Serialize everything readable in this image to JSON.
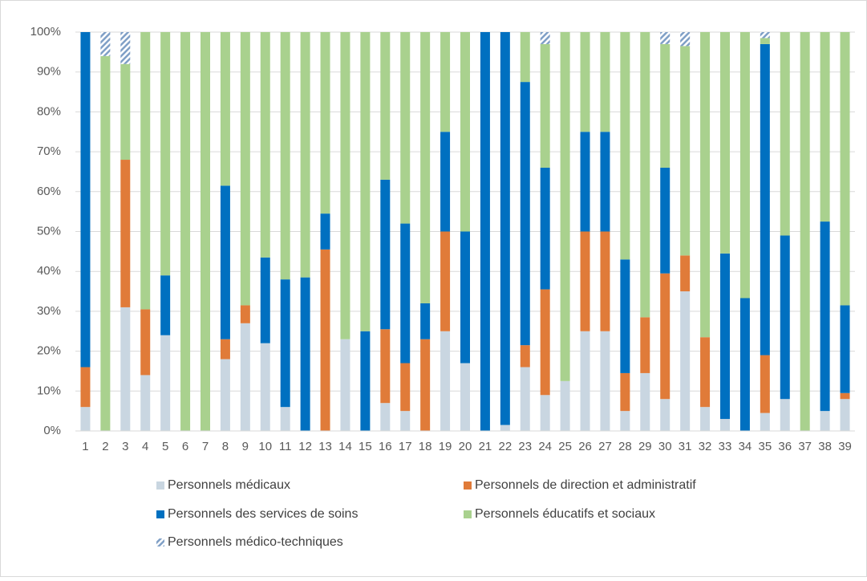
{
  "chart_data": {
    "type": "stacked_bar",
    "categories": [
      "1",
      "2",
      "3",
      "4",
      "5",
      "6",
      "7",
      "8",
      "9",
      "10",
      "11",
      "12",
      "13",
      "14",
      "15",
      "16",
      "17",
      "18",
      "19",
      "20",
      "21",
      "22",
      "23",
      "24",
      "25",
      "26",
      "27",
      "28",
      "29",
      "30",
      "31",
      "32",
      "33",
      "34",
      "35",
      "36",
      "37",
      "38",
      "39"
    ],
    "series": [
      {
        "name": "Personnels médicaux",
        "color": "#c9d6e1",
        "values": [
          6,
          0,
          31,
          14,
          24,
          0,
          0,
          18,
          27,
          22,
          6,
          0,
          0,
          23,
          0,
          7,
          5,
          0,
          25,
          17,
          0,
          1.5,
          16,
          9,
          12.5,
          25,
          25,
          5,
          14.5,
          8,
          35,
          6,
          3,
          0,
          4.5,
          8,
          0,
          5,
          8
        ]
      },
      {
        "name": "Personnels de direction et administratif",
        "color": "#e07b39",
        "values": [
          10,
          0,
          37,
          16.5,
          0,
          0,
          0,
          5,
          4.5,
          0,
          0,
          0,
          45.5,
          0,
          0,
          18.5,
          12,
          23,
          25,
          0,
          0,
          0,
          5.5,
          26.5,
          0,
          25,
          25,
          9.5,
          14,
          31.5,
          9,
          17.5,
          0,
          0,
          14.5,
          0,
          0,
          0,
          1.5
        ]
      },
      {
        "name": "Personnels des services de soins",
        "color": "#0070c0",
        "values": [
          84,
          0,
          0,
          0,
          15,
          0,
          0,
          38.5,
          0,
          21.5,
          32,
          38.5,
          9,
          0,
          25,
          37.5,
          35,
          9,
          25,
          33,
          100,
          98.5,
          66,
          30.5,
          0,
          25,
          25,
          28.5,
          0,
          26.5,
          0,
          0,
          41.5,
          33.3,
          78,
          41,
          0,
          47.5,
          22
        ]
      },
      {
        "name": "Personnels éducatifs et sociaux",
        "color": "#a9d18e",
        "values": [
          0,
          94,
          24,
          69.5,
          61,
          100,
          100,
          38.5,
          68.5,
          56.5,
          62,
          61.5,
          45.5,
          77,
          75,
          37,
          48,
          68,
          25,
          50,
          0,
          0,
          12.5,
          31,
          87.5,
          25,
          25,
          57,
          71.5,
          31,
          52.5,
          76.5,
          55.5,
          66.7,
          1.5,
          51,
          100,
          47.5,
          68.5
        ]
      },
      {
        "name": "Personnels médico-techniques",
        "color": "#7f9fc6",
        "pattern": "diagonal",
        "values": [
          0,
          6,
          8,
          0,
          0,
          0,
          0,
          0,
          0,
          0,
          0,
          0,
          0,
          0,
          0,
          0,
          0,
          0,
          0,
          0,
          0,
          0,
          0,
          3,
          0,
          0,
          0,
          0,
          0,
          3,
          3.5,
          0,
          0,
          0,
          1.5,
          0,
          0,
          0,
          0
        ]
      }
    ],
    "ylim": [
      0,
      100
    ],
    "yticks": [
      {
        "value": 0,
        "label": "0%"
      },
      {
        "value": 10,
        "label": "10%"
      },
      {
        "value": 20,
        "label": "20%"
      },
      {
        "value": 30,
        "label": "30%"
      },
      {
        "value": 40,
        "label": "40%"
      },
      {
        "value": 50,
        "label": "50%"
      },
      {
        "value": 60,
        "label": "60%"
      },
      {
        "value": 70,
        "label": "70%"
      },
      {
        "value": 80,
        "label": "80%"
      },
      {
        "value": 90,
        "label": "90%"
      },
      {
        "value": 100,
        "label": "100%"
      }
    ],
    "grid": true,
    "legend": "bottom"
  }
}
